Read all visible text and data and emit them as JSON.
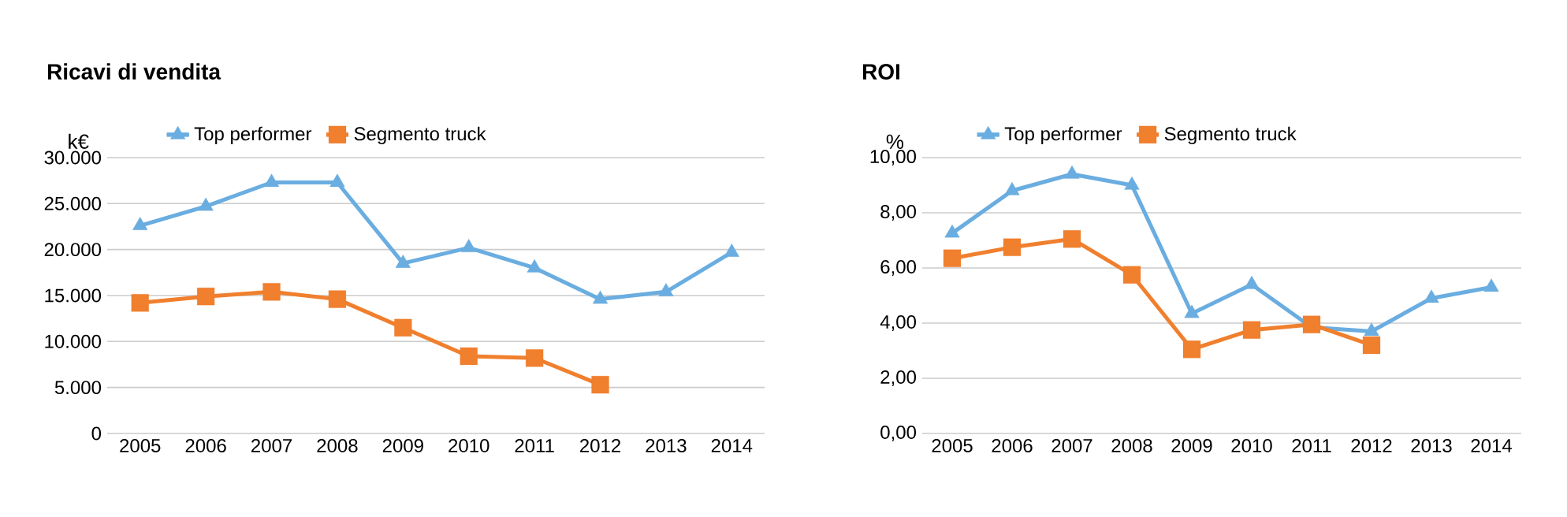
{
  "chart_data": [
    {
      "type": "line",
      "title": "Ricavi di vendita",
      "ylabel": "k€",
      "categories": [
        "2005",
        "2006",
        "2007",
        "2008",
        "2009",
        "2010",
        "2011",
        "2012",
        "2013",
        "2014"
      ],
      "ylim": [
        0,
        30000
      ],
      "yticks": [
        {
          "value": 0,
          "label": "0"
        },
        {
          "value": 5000,
          "label": "5.000"
        },
        {
          "value": 10000,
          "label": "10.000"
        },
        {
          "value": 15000,
          "label": "15.000"
        },
        {
          "value": 20000,
          "label": "20.000"
        },
        {
          "value": 25000,
          "label": "25.000"
        },
        {
          "value": 30000,
          "label": "30.000"
        }
      ],
      "grid": "y",
      "legend": "top",
      "series": [
        {
          "name": "Top performer",
          "color": "#6aade0",
          "marker": "triangle",
          "values": [
            22600,
            24700,
            27300,
            27300,
            18500,
            20200,
            18000,
            14600,
            15400,
            19700
          ]
        },
        {
          "name": "Segmento truck",
          "color": "#f07f2e",
          "marker": "square",
          "values": [
            14200,
            14900,
            15400,
            14600,
            11500,
            8400,
            8200,
            5300,
            null,
            null
          ]
        }
      ]
    },
    {
      "type": "line",
      "title": "ROI",
      "ylabel": "%",
      "categories": [
        "2005",
        "2006",
        "2007",
        "2008",
        "2009",
        "2010",
        "2011",
        "2012",
        "2013",
        "2014"
      ],
      "ylim": [
        0,
        10
      ],
      "yticks": [
        {
          "value": 0,
          "label": "0,00"
        },
        {
          "value": 2,
          "label": "2,00"
        },
        {
          "value": 4,
          "label": "4,00"
        },
        {
          "value": 6,
          "label": "6,00"
        },
        {
          "value": 8,
          "label": "8,00"
        },
        {
          "value": 10,
          "label": "10,00"
        }
      ],
      "grid": "y",
      "legend": "top",
      "series": [
        {
          "name": "Top performer",
          "color": "#6aade0",
          "marker": "triangle",
          "values": [
            7.26,
            8.8,
            9.4,
            9.0,
            4.35,
            5.4,
            3.85,
            3.7,
            4.9,
            5.3
          ]
        },
        {
          "name": "Segmento truck",
          "color": "#f07f2e",
          "marker": "square",
          "values": [
            6.35,
            6.75,
            7.05,
            5.75,
            3.05,
            3.75,
            3.95,
            3.2,
            null,
            null
          ]
        }
      ]
    }
  ]
}
